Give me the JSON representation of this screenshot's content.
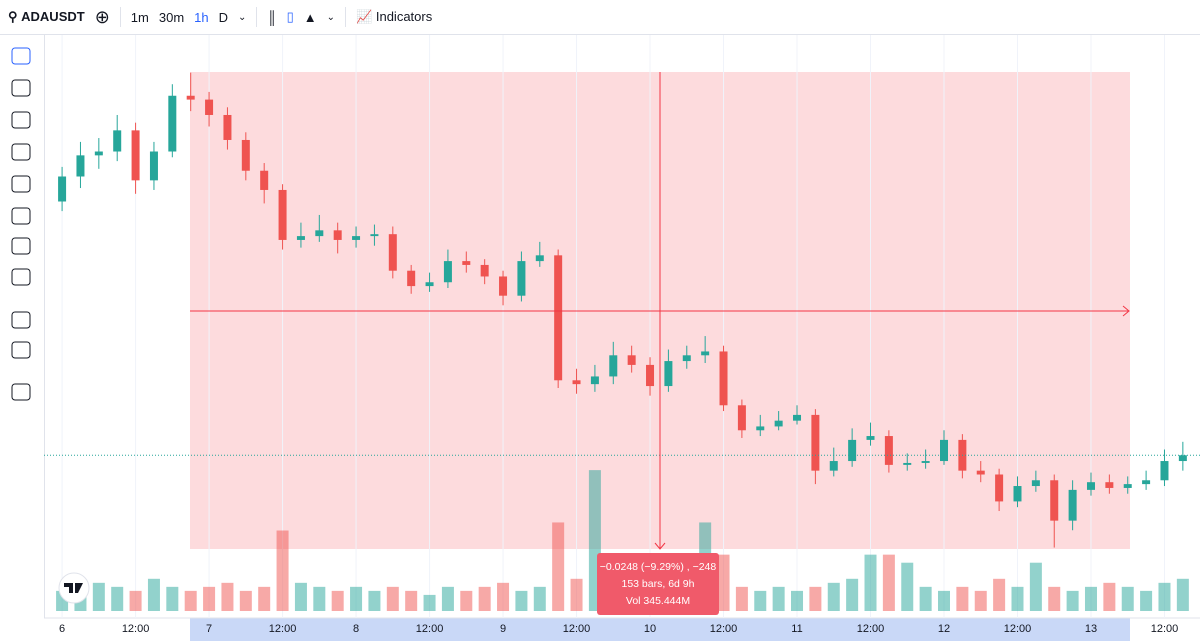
{
  "toolbar": {
    "symbol": "ADAUSDT",
    "intervals": [
      "1m",
      "30m",
      "1h",
      "D"
    ],
    "active_interval": "1h",
    "indicators": "Indicators"
  },
  "measure": {
    "change": "−0.0248 (−9.29%) , −248",
    "bars": "153 bars, 6d 9h",
    "volume": "Vol 345.444M"
  },
  "chart_data": {
    "type": "candlestick",
    "up_color": "#26a69a",
    "down_color": "#ef5350",
    "x": [
      0,
      3,
      6,
      9,
      12,
      15,
      18,
      21,
      24,
      27,
      30,
      33,
      36,
      39,
      42,
      45,
      48,
      51,
      54,
      57,
      60,
      63,
      66,
      69,
      72,
      75,
      78,
      81,
      84,
      87,
      90,
      93,
      96,
      99,
      102,
      105,
      108,
      111,
      114,
      117,
      120,
      123,
      126,
      129,
      132,
      135,
      138,
      141,
      144,
      147,
      150,
      153,
      156,
      159,
      162,
      165,
      168,
      171,
      174,
      177,
      180,
      183
    ],
    "open": [
      0.2603,
      0.2616,
      0.2627,
      0.2629,
      0.264,
      0.2614,
      0.2629,
      0.2658,
      0.2656,
      0.2648,
      0.2635,
      0.2619,
      0.2609,
      0.2583,
      0.2585,
      0.2588,
      0.2583,
      0.2585,
      0.2586,
      0.2567,
      0.2559,
      0.2561,
      0.2572,
      0.257,
      0.2564,
      0.2554,
      0.2572,
      0.2575,
      0.251,
      0.2508,
      0.2512,
      0.2523,
      0.2518,
      0.2507,
      0.252,
      0.2523,
      0.2525,
      0.2497,
      0.2484,
      0.2486,
      0.2489,
      0.2492,
      0.2463,
      0.2468,
      0.2479,
      0.2481,
      0.2466,
      0.2467,
      0.2468,
      0.2479,
      0.2463,
      0.2461,
      0.2447,
      0.2455,
      0.2458,
      0.2437,
      0.2453,
      0.2457,
      0.2454,
      0.2456,
      0.2458,
      0.2468
    ],
    "close": [
      0.2616,
      0.2627,
      0.2629,
      0.264,
      0.2614,
      0.2629,
      0.2658,
      0.2656,
      0.2648,
      0.2635,
      0.2619,
      0.2609,
      0.2583,
      0.2585,
      0.2588,
      0.2583,
      0.2585,
      0.2586,
      0.2567,
      0.2559,
      0.2561,
      0.2572,
      0.257,
      0.2564,
      0.2554,
      0.2572,
      0.2575,
      0.251,
      0.2508,
      0.2512,
      0.2523,
      0.2518,
      0.2507,
      0.252,
      0.2523,
      0.2525,
      0.2497,
      0.2484,
      0.2486,
      0.2489,
      0.2492,
      0.2463,
      0.2468,
      0.2479,
      0.2481,
      0.2466,
      0.2467,
      0.2468,
      0.2479,
      0.2463,
      0.2461,
      0.2447,
      0.2455,
      0.2458,
      0.2437,
      0.2453,
      0.2457,
      0.2454,
      0.2456,
      0.2458,
      0.2468,
      0.2471
    ],
    "high": [
      0.2621,
      0.2634,
      0.2636,
      0.2648,
      0.2644,
      0.2634,
      0.2664,
      0.267,
      0.266,
      0.2652,
      0.2639,
      0.2623,
      0.2612,
      0.2592,
      0.2596,
      0.2592,
      0.259,
      0.2591,
      0.259,
      0.257,
      0.2566,
      0.2578,
      0.2577,
      0.2573,
      0.2567,
      0.2577,
      0.2582,
      0.2578,
      0.2516,
      0.2518,
      0.253,
      0.2528,
      0.2522,
      0.2526,
      0.2528,
      0.2533,
      0.2528,
      0.25,
      0.2492,
      0.2494,
      0.2497,
      0.2495,
      0.2475,
      0.2485,
      0.2488,
      0.2484,
      0.2472,
      0.2474,
      0.2484,
      0.2482,
      0.2468,
      0.2464,
      0.246,
      0.2463,
      0.2461,
      0.2458,
      0.2462,
      0.2461,
      0.246,
      0.2463,
      0.2474,
      0.2478
    ],
    "low": [
      0.2598,
      0.261,
      0.262,
      0.2624,
      0.2607,
      0.2609,
      0.2626,
      0.265,
      0.2642,
      0.263,
      0.2614,
      0.2602,
      0.2578,
      0.2579,
      0.2582,
      0.2576,
      0.2579,
      0.258,
      0.2563,
      0.2555,
      0.2556,
      0.2558,
      0.2566,
      0.256,
      0.2549,
      0.2551,
      0.2569,
      0.2506,
      0.2503,
      0.2504,
      0.2508,
      0.2514,
      0.2502,
      0.2504,
      0.2516,
      0.2519,
      0.2494,
      0.248,
      0.2481,
      0.2484,
      0.2487,
      0.2456,
      0.246,
      0.2465,
      0.2476,
      0.2462,
      0.2463,
      0.2464,
      0.2466,
      0.2459,
      0.2457,
      0.2442,
      0.2444,
      0.2452,
      0.2423,
      0.2432,
      0.245,
      0.2451,
      0.2451,
      0.2453,
      0.2455,
      0.2463
    ],
    "volume": [
      5,
      6,
      7,
      6,
      5,
      8,
      6,
      5,
      6,
      7,
      5,
      6,
      20,
      7,
      6,
      5,
      6,
      5,
      6,
      5,
      4,
      6,
      5,
      6,
      7,
      5,
      6,
      22,
      8,
      35,
      7,
      6,
      5,
      6,
      6,
      22,
      14,
      6,
      5,
      6,
      5,
      6,
      7,
      8,
      14,
      14,
      12,
      6,
      5,
      6,
      5,
      8,
      6,
      12,
      6,
      5,
      6,
      7,
      6,
      5,
      7,
      8
    ],
    "xlim": [
      -2.3,
      185.8
    ],
    "ylim": [
      0.239,
      0.2687
    ],
    "y2lim": [
      0,
      40
    ],
    "xticks": [
      {
        "value": 0,
        "label": "6"
      },
      {
        "value": 12,
        "label": "12:00"
      },
      {
        "value": 24,
        "label": "7"
      },
      {
        "value": 36,
        "label": "12:00"
      },
      {
        "value": 48,
        "label": "8"
      },
      {
        "value": 60,
        "label": "12:00"
      },
      {
        "value": 72,
        "label": "9"
      },
      {
        "value": 84,
        "label": "12:00"
      },
      {
        "value": 96,
        "label": "10"
      },
      {
        "value": 108,
        "label": "12:00"
      },
      {
        "value": 120,
        "label": "11"
      },
      {
        "value": 132,
        "label": "12:00"
      },
      {
        "value": 144,
        "label": "12"
      },
      {
        "value": 156,
        "label": "12:00"
      },
      {
        "value": 168,
        "label": "13"
      },
      {
        "value": 180,
        "label": "12:00"
      }
    ]
  }
}
